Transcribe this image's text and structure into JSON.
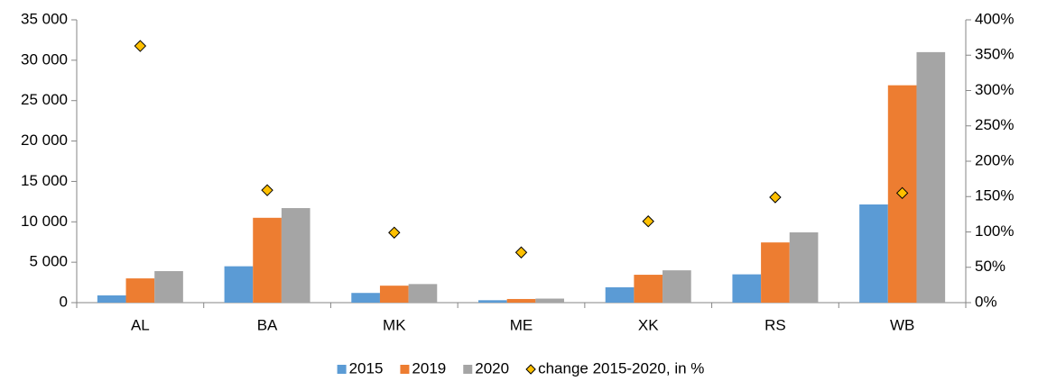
{
  "chart_data": {
    "type": "bar",
    "categories": [
      "AL",
      "BA",
      "MK",
      "ME",
      "XK",
      "RS",
      "WB"
    ],
    "series": [
      {
        "name": "2015",
        "color": "#5b9bd5",
        "values": [
          900,
          4500,
          1200,
          300,
          1900,
          3500,
          12150
        ]
      },
      {
        "name": "2019",
        "color": "#ed7d31",
        "values": [
          3000,
          10500,
          2100,
          450,
          3450,
          7450,
          26900
        ]
      },
      {
        "name": "2020",
        "color": "#a5a5a5",
        "values": [
          3900,
          11700,
          2300,
          500,
          4000,
          8700,
          31000
        ]
      },
      {
        "name": "change 2015-2020, in %",
        "color": "#ffc000",
        "axis": "y2",
        "marker": "diamond",
        "values": [
          363,
          159,
          99,
          71,
          115,
          149,
          155
        ]
      }
    ],
    "ylim": [
      0,
      35000
    ],
    "yticks": [
      0,
      {
        "value": 5000,
        "label": "5 000"
      },
      {
        "value": 10000,
        "label": "10 000"
      },
      {
        "value": 15000,
        "label": "15 000"
      },
      {
        "value": 20000,
        "label": "20 000"
      },
      {
        "value": 25000,
        "label": "25 000"
      },
      {
        "value": 30000,
        "label": "30 000"
      },
      {
        "value": 35000,
        "label": "35 000"
      }
    ],
    "y2lim": [
      0,
      400
    ],
    "y2ticks": [
      {
        "value": 0,
        "label": "0%"
      },
      {
        "value": 50,
        "label": "50%"
      },
      {
        "value": 100,
        "label": "100%"
      },
      {
        "value": 150,
        "label": "150%"
      },
      {
        "value": 200,
        "label": "200%"
      },
      {
        "value": 250,
        "label": "250%"
      },
      {
        "value": 300,
        "label": "300%"
      },
      {
        "value": 350,
        "label": "350%"
      },
      {
        "value": 400,
        "label": "400%"
      }
    ],
    "grid": false,
    "legend": "bottom"
  }
}
